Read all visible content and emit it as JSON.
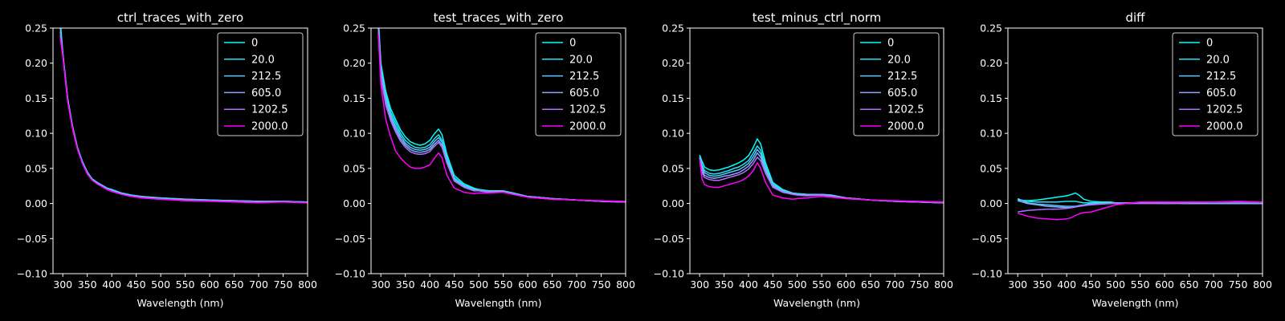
{
  "chart_data": {
    "type": "line",
    "x_units": "nm",
    "legend_position": "upper-right",
    "grid": false,
    "series_colors": [
      "#00ffff",
      "#22e5f5",
      "#55c8ff",
      "#88a8ff",
      "#b070ff",
      "#ff00ff"
    ],
    "charts": [
      {
        "title": "ctrl_traces_with_zero",
        "xlabel": "Wavelength (nm)",
        "xlim": [
          280,
          800
        ],
        "ylim": [
          -0.1,
          0.25
        ],
        "xticks": [
          "300",
          "350",
          "400",
          "450",
          "500",
          "550",
          "600",
          "650",
          "700",
          "750",
          "800"
        ],
        "yticks": [
          "−0.10",
          "−0.05",
          "0.00",
          "0.05",
          "0.10",
          "0.15",
          "0.20",
          "0.25"
        ],
        "x": [
          295,
          300,
          310,
          320,
          330,
          340,
          350,
          360,
          370,
          380,
          390,
          400,
          420,
          440,
          460,
          480,
          500,
          550,
          600,
          650,
          700,
          750,
          800
        ],
        "series": [
          {
            "name": "0",
            "values": [
              0.26,
              0.215,
              0.15,
              0.11,
              0.08,
              0.06,
              0.045,
              0.035,
              0.03,
              0.026,
              0.022,
              0.02,
              0.015,
              0.012,
              0.01,
              0.009,
              0.008,
              0.006,
              0.005,
              0.004,
              0.003,
              0.003,
              0.002
            ]
          },
          {
            "name": "20.0",
            "values": [
              0.255,
              0.214,
              0.149,
              0.109,
              0.079,
              0.059,
              0.044,
              0.035,
              0.03,
              0.026,
              0.022,
              0.019,
              0.015,
              0.012,
              0.01,
              0.009,
              0.008,
              0.006,
              0.005,
              0.004,
              0.003,
              0.003,
              0.002
            ]
          },
          {
            "name": "212.5",
            "values": [
              0.25,
              0.213,
              0.148,
              0.108,
              0.079,
              0.058,
              0.044,
              0.034,
              0.029,
              0.025,
              0.021,
              0.019,
              0.014,
              0.011,
              0.01,
              0.008,
              0.007,
              0.006,
              0.004,
              0.004,
              0.003,
              0.003,
              0.002
            ]
          },
          {
            "name": "605.0",
            "values": [
              0.245,
              0.212,
              0.147,
              0.108,
              0.078,
              0.058,
              0.043,
              0.034,
              0.029,
              0.025,
              0.021,
              0.018,
              0.014,
              0.011,
              0.009,
              0.008,
              0.007,
              0.005,
              0.004,
              0.003,
              0.002,
              0.002,
              0.002
            ]
          },
          {
            "name": "1202.5",
            "values": [
              0.24,
              0.211,
              0.146,
              0.107,
              0.078,
              0.057,
              0.043,
              0.033,
              0.028,
              0.024,
              0.02,
              0.018,
              0.013,
              0.01,
              0.009,
              0.007,
              0.006,
              0.005,
              0.004,
              0.003,
              0.002,
              0.002,
              0.001
            ]
          },
          {
            "name": "2000.0",
            "values": [
              0.235,
              0.21,
              0.145,
              0.106,
              0.077,
              0.057,
              0.042,
              0.033,
              0.028,
              0.024,
              0.02,
              0.017,
              0.013,
              0.01,
              0.008,
              0.007,
              0.006,
              0.004,
              0.003,
              0.002,
              0.001,
              0.002,
              0.001
            ]
          }
        ]
      },
      {
        "title": "test_traces_with_zero",
        "xlabel": "Wavelength (nm)",
        "xlim": [
          280,
          800
        ],
        "ylim": [
          -0.1,
          0.25
        ],
        "xticks": [
          "300",
          "350",
          "400",
          "450",
          "500",
          "550",
          "600",
          "650",
          "700",
          "750",
          "800"
        ],
        "yticks": [
          "−0.10",
          "−0.05",
          "0.00",
          "0.05",
          "0.10",
          "0.15",
          "0.20",
          "0.25"
        ],
        "x": [
          295,
          300,
          310,
          320,
          330,
          340,
          350,
          360,
          370,
          380,
          390,
          400,
          410,
          418,
          425,
          435,
          450,
          470,
          490,
          500,
          520,
          550,
          570,
          600,
          650,
          700,
          750,
          800
        ],
        "series": [
          {
            "name": "0",
            "values": [
              0.265,
              0.2,
              0.16,
              0.135,
              0.12,
              0.105,
              0.095,
              0.088,
              0.085,
              0.083,
              0.085,
              0.09,
              0.1,
              0.106,
              0.098,
              0.07,
              0.04,
              0.028,
              0.022,
              0.02,
              0.018,
              0.018,
              0.015,
              0.01,
              0.007,
              0.005,
              0.003,
              0.002
            ]
          },
          {
            "name": "20.0",
            "values": [
              0.26,
              0.195,
              0.155,
              0.13,
              0.115,
              0.1,
              0.09,
              0.084,
              0.08,
              0.079,
              0.08,
              0.084,
              0.093,
              0.098,
              0.09,
              0.065,
              0.037,
              0.026,
              0.021,
              0.02,
              0.018,
              0.018,
              0.015,
              0.01,
              0.007,
              0.005,
              0.003,
              0.002
            ]
          },
          {
            "name": "212.5",
            "values": [
              0.255,
              0.19,
              0.15,
              0.126,
              0.11,
              0.096,
              0.086,
              0.08,
              0.077,
              0.076,
              0.077,
              0.08,
              0.089,
              0.094,
              0.087,
              0.062,
              0.035,
              0.025,
              0.02,
              0.019,
              0.017,
              0.017,
              0.014,
              0.01,
              0.007,
              0.005,
              0.003,
              0.002
            ]
          },
          {
            "name": "605.0",
            "values": [
              0.25,
              0.185,
              0.145,
              0.122,
              0.106,
              0.092,
              0.083,
              0.077,
              0.074,
              0.073,
              0.074,
              0.077,
              0.085,
              0.09,
              0.083,
              0.059,
              0.033,
              0.024,
              0.019,
              0.018,
              0.017,
              0.017,
              0.014,
              0.01,
              0.007,
              0.005,
              0.003,
              0.002
            ]
          },
          {
            "name": "1202.5",
            "values": [
              0.245,
              0.18,
              0.14,
              0.118,
              0.102,
              0.089,
              0.08,
              0.074,
              0.071,
              0.07,
              0.071,
              0.074,
              0.082,
              0.087,
              0.08,
              0.057,
              0.032,
              0.023,
              0.018,
              0.018,
              0.016,
              0.016,
              0.013,
              0.009,
              0.006,
              0.005,
              0.003,
              0.002
            ]
          },
          {
            "name": "2000.0",
            "values": [
              0.24,
              0.17,
              0.12,
              0.095,
              0.075,
              0.065,
              0.058,
              0.052,
              0.05,
              0.05,
              0.052,
              0.055,
              0.065,
              0.072,
              0.065,
              0.04,
              0.022,
              0.016,
              0.014,
              0.015,
              0.015,
              0.016,
              0.013,
              0.009,
              0.006,
              0.005,
              0.004,
              0.003
            ]
          }
        ]
      },
      {
        "title": "test_minus_ctrl_norm",
        "xlabel": "Wavelength (nm)",
        "xlim": [
          280,
          800
        ],
        "ylim": [
          -0.1,
          0.25
        ],
        "xticks": [
          "300",
          "350",
          "400",
          "450",
          "500",
          "550",
          "600",
          "650",
          "700",
          "750",
          "800"
        ],
        "yticks": [
          "−0.10",
          "−0.05",
          "0.00",
          "0.05",
          "0.10",
          "0.15",
          "0.20",
          "0.25"
        ],
        "x": [
          300,
          305,
          310,
          320,
          330,
          340,
          350,
          360,
          370,
          380,
          390,
          400,
          410,
          418,
          425,
          435,
          450,
          470,
          490,
          500,
          520,
          550,
          570,
          600,
          650,
          700,
          750,
          800
        ],
        "series": [
          {
            "name": "0",
            "values": [
              0.069,
              0.06,
              0.052,
              0.048,
              0.047,
              0.048,
              0.05,
              0.052,
              0.055,
              0.058,
              0.062,
              0.068,
              0.08,
              0.092,
              0.085,
              0.058,
              0.03,
              0.02,
              0.015,
              0.014,
              0.013,
              0.013,
              0.012,
              0.008,
              0.005,
              0.003,
              0.002,
              0.001
            ]
          },
          {
            "name": "20.0",
            "values": [
              0.067,
              0.055,
              0.047,
              0.043,
              0.042,
              0.043,
              0.045,
              0.047,
              0.05,
              0.052,
              0.056,
              0.061,
              0.072,
              0.082,
              0.076,
              0.053,
              0.028,
              0.019,
              0.015,
              0.014,
              0.013,
              0.013,
              0.012,
              0.008,
              0.005,
              0.003,
              0.002,
              0.001
            ]
          },
          {
            "name": "212.5",
            "values": [
              0.066,
              0.052,
              0.044,
              0.04,
              0.039,
              0.04,
              0.042,
              0.044,
              0.046,
              0.048,
              0.052,
              0.057,
              0.067,
              0.077,
              0.071,
              0.05,
              0.026,
              0.018,
              0.014,
              0.013,
              0.012,
              0.013,
              0.011,
              0.008,
              0.005,
              0.003,
              0.002,
              0.001
            ]
          },
          {
            "name": "605.0",
            "values": [
              0.065,
              0.048,
              0.04,
              0.037,
              0.036,
              0.037,
              0.039,
              0.04,
              0.042,
              0.044,
              0.048,
              0.053,
              0.062,
              0.072,
              0.066,
              0.047,
              0.025,
              0.017,
              0.014,
              0.013,
              0.012,
              0.012,
              0.011,
              0.008,
              0.005,
              0.003,
              0.002,
              0.001
            ]
          },
          {
            "name": "1202.5",
            "values": [
              0.064,
              0.044,
              0.037,
              0.034,
              0.033,
              0.033,
              0.035,
              0.037,
              0.039,
              0.041,
              0.044,
              0.049,
              0.057,
              0.066,
              0.061,
              0.043,
              0.023,
              0.016,
              0.013,
              0.012,
              0.011,
              0.012,
              0.01,
              0.007,
              0.005,
              0.003,
              0.002,
              0.001
            ]
          },
          {
            "name": "2000.0",
            "values": [
              0.062,
              0.035,
              0.027,
              0.024,
              0.023,
              0.023,
              0.025,
              0.027,
              0.029,
              0.031,
              0.034,
              0.039,
              0.047,
              0.058,
              0.05,
              0.03,
              0.012,
              0.008,
              0.006,
              0.007,
              0.008,
              0.01,
              0.009,
              0.007,
              0.005,
              0.004,
              0.003,
              0.002
            ]
          }
        ]
      },
      {
        "title": "diff",
        "xlabel": "Wavelength (nm)",
        "xlim": [
          280,
          800
        ],
        "ylim": [
          -0.1,
          0.25
        ],
        "xticks": [
          "300",
          "350",
          "400",
          "450",
          "500",
          "550",
          "600",
          "650",
          "700",
          "750",
          "800"
        ],
        "yticks": [
          "−0.10",
          "−0.05",
          "0.00",
          "0.05",
          "0.10",
          "0.15",
          "0.20",
          "0.25"
        ],
        "x": [
          300,
          320,
          340,
          360,
          380,
          400,
          410,
          418,
          425,
          435,
          450,
          470,
          490,
          500,
          520,
          550,
          600,
          650,
          700,
          750,
          800
        ],
        "series": [
          {
            "name": "0",
            "values": [
              0.005,
              0.004,
              0.005,
              0.007,
              0.009,
              0.011,
              0.013,
              0.015,
              0.012,
              0.006,
              0.003,
              0.002,
              0.002,
              0.001,
              0.001,
              0.001,
              0.001,
              0.0,
              0.0,
              0.0,
              0.0
            ]
          },
          {
            "name": "20.0",
            "values": [
              0.006,
              0.003,
              0.002,
              0.002,
              0.002,
              0.003,
              0.003,
              0.003,
              0.002,
              0.001,
              0.001,
              0.001,
              0.001,
              0.001,
              0.001,
              0.001,
              0.001,
              0.0,
              0.0,
              0.0,
              0.0
            ]
          },
          {
            "name": "212.5",
            "values": [
              0.007,
              0.001,
              -0.001,
              -0.002,
              -0.003,
              -0.004,
              -0.004,
              -0.004,
              -0.003,
              -0.002,
              0.0,
              0.0,
              0.0,
              0.001,
              0.001,
              0.001,
              0.001,
              0.0,
              0.0,
              0.0,
              0.0
            ]
          },
          {
            "name": "605.0",
            "values": [
              0.004,
              0.0,
              -0.002,
              -0.004,
              -0.005,
              -0.006,
              -0.006,
              -0.005,
              -0.004,
              -0.003,
              -0.001,
              0.0,
              0.0,
              0.001,
              0.001,
              0.001,
              0.0,
              0.0,
              0.0,
              0.0,
              0.0
            ]
          },
          {
            "name": "1202.5",
            "values": [
              -0.012,
              -0.01,
              -0.009,
              -0.008,
              -0.008,
              -0.007,
              -0.006,
              -0.005,
              -0.004,
              -0.003,
              -0.002,
              -0.001,
              0.0,
              0.0,
              0.0,
              0.0,
              0.0,
              0.001,
              0.002,
              0.002,
              0.002
            ]
          },
          {
            "name": "2000.0",
            "values": [
              -0.014,
              -0.018,
              -0.021,
              -0.022,
              -0.023,
              -0.022,
              -0.02,
              -0.017,
              -0.015,
              -0.013,
              -0.012,
              -0.008,
              -0.004,
              -0.002,
              0.0,
              0.002,
              0.002,
              0.002,
              0.002,
              0.003,
              0.002
            ]
          }
        ]
      }
    ]
  }
}
